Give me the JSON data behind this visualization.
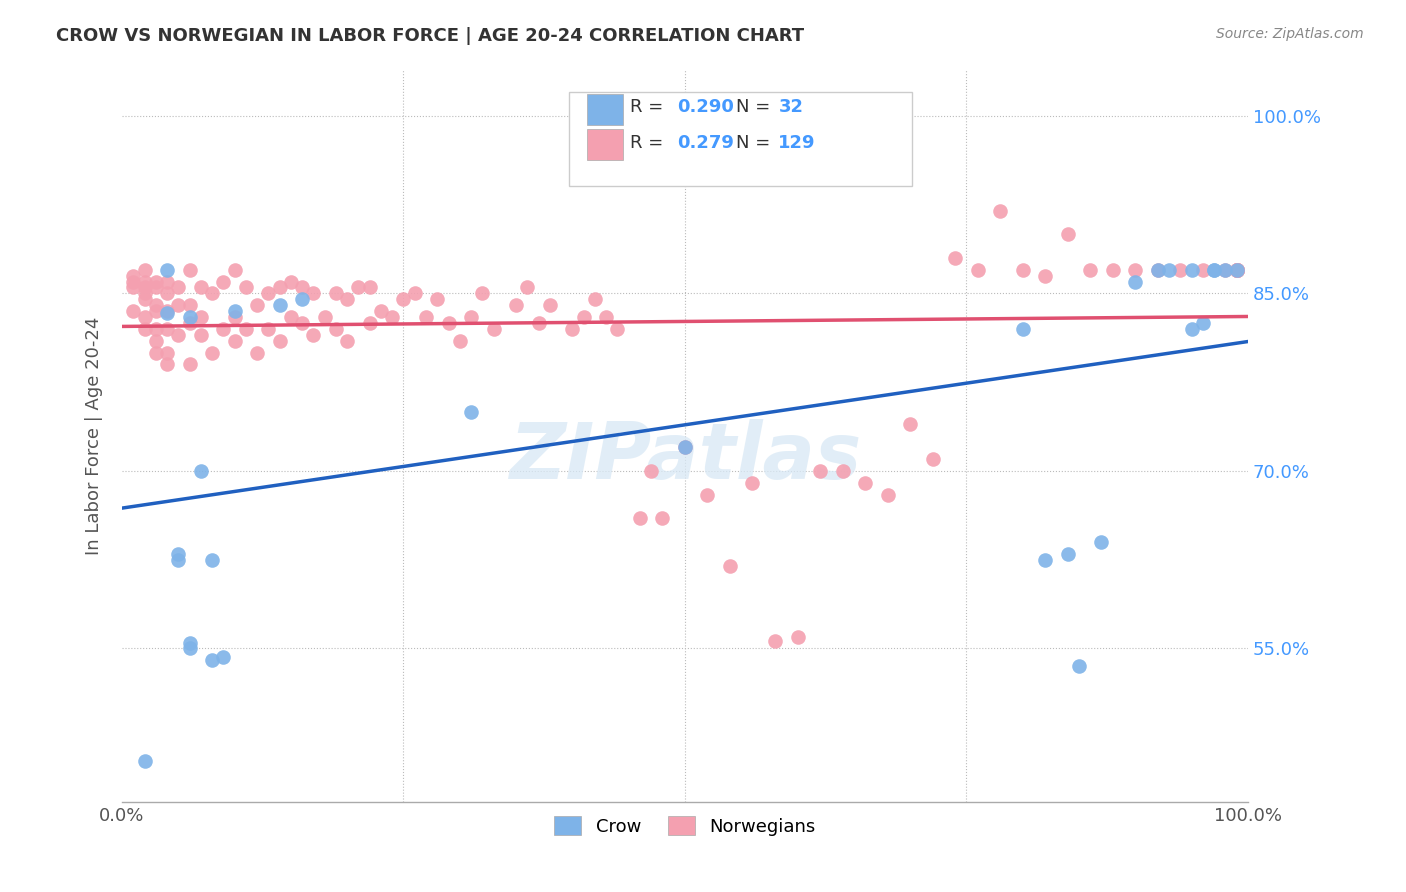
{
  "title": "CROW VS NORWEGIAN IN LABOR FORCE | AGE 20-24 CORRELATION CHART",
  "source": "Source: ZipAtlas.com",
  "ylabel": "In Labor Force | Age 20-24",
  "xlim": [
    0.0,
    1.0
  ],
  "ylim": [
    0.42,
    1.04
  ],
  "ytick_vals": [
    0.55,
    0.7,
    0.85,
    1.0
  ],
  "ytick_labels": [
    "55.0%",
    "70.0%",
    "85.0%",
    "100.0%"
  ],
  "crow_color": "#7EB3E8",
  "norwegian_color": "#F4A0B0",
  "crow_line_color": "#2060C0",
  "norwegian_line_color": "#E05070",
  "crow_R": 0.29,
  "crow_N": 32,
  "norwegian_R": 0.279,
  "norwegian_N": 129,
  "watermark": "ZIPatlas",
  "background_color": "#ffffff",
  "crow_scatter_x": [
    0.02,
    0.04,
    0.04,
    0.05,
    0.05,
    0.06,
    0.06,
    0.06,
    0.07,
    0.08,
    0.08,
    0.09,
    0.1,
    0.14,
    0.16,
    0.31,
    0.5,
    0.8,
    0.82,
    0.84,
    0.85,
    0.87,
    0.9,
    0.92,
    0.93,
    0.95,
    0.95,
    0.96,
    0.97,
    0.97,
    0.98,
    0.99
  ],
  "crow_scatter_y": [
    0.455,
    0.833,
    0.87,
    0.625,
    0.63,
    0.55,
    0.555,
    0.83,
    0.7,
    0.54,
    0.625,
    0.543,
    0.835,
    0.84,
    0.845,
    0.75,
    0.72,
    0.82,
    0.625,
    0.63,
    0.535,
    0.64,
    0.86,
    0.87,
    0.87,
    0.87,
    0.82,
    0.825,
    0.87,
    0.87,
    0.87,
    0.87
  ],
  "norwegian_scatter_x": [
    0.01,
    0.01,
    0.01,
    0.01,
    0.02,
    0.02,
    0.02,
    0.02,
    0.02,
    0.02,
    0.02,
    0.03,
    0.03,
    0.03,
    0.03,
    0.03,
    0.03,
    0.03,
    0.04,
    0.04,
    0.04,
    0.04,
    0.04,
    0.04,
    0.05,
    0.05,
    0.05,
    0.06,
    0.06,
    0.06,
    0.06,
    0.07,
    0.07,
    0.07,
    0.08,
    0.08,
    0.09,
    0.09,
    0.1,
    0.1,
    0.1,
    0.11,
    0.11,
    0.12,
    0.12,
    0.13,
    0.13,
    0.14,
    0.14,
    0.15,
    0.15,
    0.16,
    0.16,
    0.17,
    0.17,
    0.18,
    0.19,
    0.19,
    0.2,
    0.2,
    0.21,
    0.22,
    0.22,
    0.23,
    0.24,
    0.25,
    0.26,
    0.27,
    0.28,
    0.29,
    0.3,
    0.31,
    0.32,
    0.33,
    0.35,
    0.36,
    0.37,
    0.38,
    0.4,
    0.41,
    0.42,
    0.43,
    0.44,
    0.46,
    0.47,
    0.48,
    0.5,
    0.52,
    0.54,
    0.56,
    0.58,
    0.6,
    0.62,
    0.64,
    0.66,
    0.68,
    0.7,
    0.72,
    0.74,
    0.76,
    0.78,
    0.8,
    0.82,
    0.84,
    0.86,
    0.88,
    0.9,
    0.92,
    0.94,
    0.96,
    0.98,
    0.99,
    0.99,
    0.99,
    0.99,
    0.99,
    0.99,
    0.99,
    0.99,
    0.99,
    0.99,
    0.99,
    0.99,
    0.99,
    0.99,
    0.99,
    0.99,
    0.99,
    0.99
  ],
  "norwegian_scatter_y": [
    0.835,
    0.855,
    0.86,
    0.865,
    0.82,
    0.83,
    0.845,
    0.85,
    0.855,
    0.86,
    0.87,
    0.8,
    0.81,
    0.82,
    0.835,
    0.84,
    0.855,
    0.86,
    0.79,
    0.8,
    0.82,
    0.835,
    0.85,
    0.86,
    0.815,
    0.84,
    0.855,
    0.79,
    0.825,
    0.84,
    0.87,
    0.815,
    0.83,
    0.855,
    0.8,
    0.85,
    0.82,
    0.86,
    0.81,
    0.83,
    0.87,
    0.82,
    0.855,
    0.8,
    0.84,
    0.82,
    0.85,
    0.81,
    0.855,
    0.83,
    0.86,
    0.825,
    0.855,
    0.815,
    0.85,
    0.83,
    0.82,
    0.85,
    0.81,
    0.845,
    0.855,
    0.825,
    0.855,
    0.835,
    0.83,
    0.845,
    0.85,
    0.83,
    0.845,
    0.825,
    0.81,
    0.83,
    0.85,
    0.82,
    0.84,
    0.855,
    0.825,
    0.84,
    0.82,
    0.83,
    0.845,
    0.83,
    0.82,
    0.66,
    0.7,
    0.66,
    0.72,
    0.68,
    0.62,
    0.69,
    0.556,
    0.56,
    0.7,
    0.7,
    0.69,
    0.68,
    0.74,
    0.71,
    0.88,
    0.87,
    0.92,
    0.87,
    0.865,
    0.9,
    0.87,
    0.87,
    0.87,
    0.87,
    0.87,
    0.87,
    0.87,
    0.87,
    0.87,
    0.87,
    0.87,
    0.87,
    0.87,
    0.87,
    0.87,
    0.87,
    0.87,
    0.87,
    0.87,
    0.87,
    0.87,
    0.87,
    0.87,
    0.87,
    0.87
  ]
}
